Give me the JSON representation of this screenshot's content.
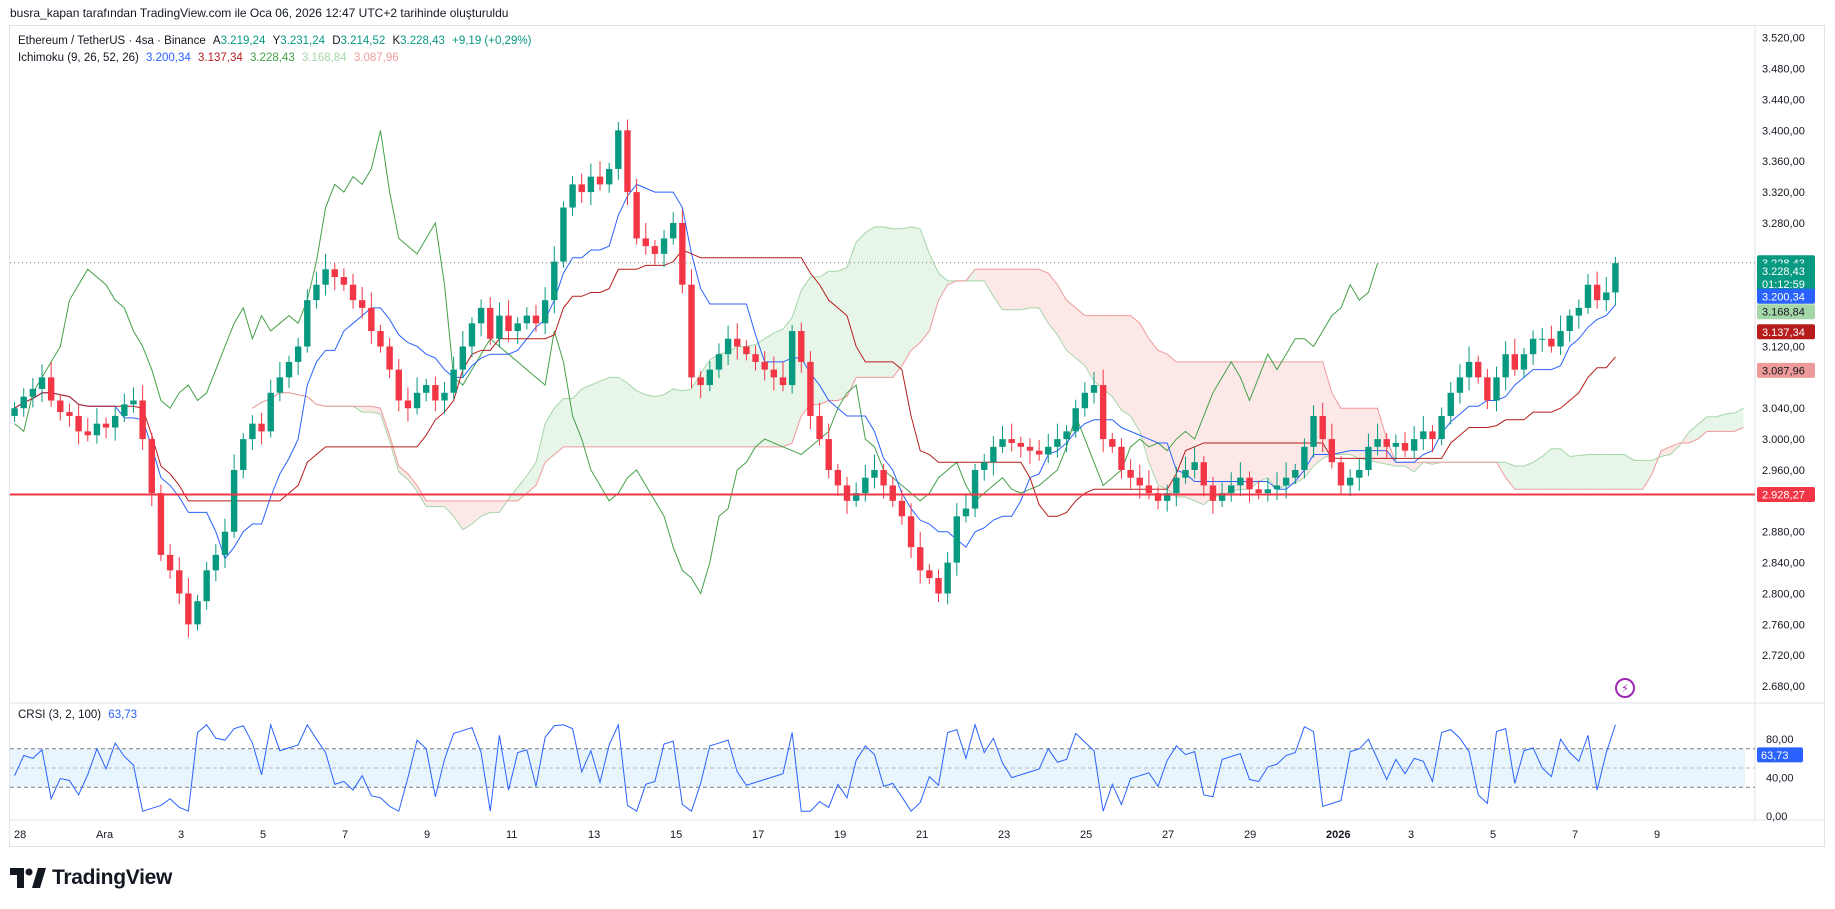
{
  "header": "busra_kapan tarafından TradingView.com ile Oca 06, 2026 12:47 UTC+2 tarihinde oluşturuldu",
  "legend": {
    "symbol": "Ethereum / TetherUS · 4sa · Binance",
    "open_label": "A",
    "open": "3.219,24",
    "high_label": "Y",
    "high": "3.231,24",
    "low_label": "D",
    "low": "3.214,52",
    "close_label": "K",
    "close": "3.228,43",
    "change": "+9,19 (+0,29%)",
    "ichimoku_name": "Ichimoku (9, 26, 52, 26)",
    "ichimoku_values": [
      "3.200,34",
      "3.137,34",
      "3.228,43",
      "3.168,84",
      "3.087,96"
    ],
    "crsi_name": "CRSI (3, 2, 100)",
    "crsi_value": "63,73"
  },
  "colors": {
    "up": "#089981",
    "down": "#f23645",
    "tenkan": "#2962ff",
    "kijun": "#b71c1c",
    "chikou": "#43a047",
    "spanA": "#a5d6a7",
    "spanB": "#ef9a9a",
    "cloud_bull": "#e8f5e9",
    "cloud_bear": "#fde8e8",
    "hline": "#f23645",
    "crsi": "#2962ff"
  },
  "chart_data": {
    "type": "candlestick",
    "symbol": "ETHUSDT",
    "timeframe": "4h",
    "price_axis": {
      "ticks": [
        "3.520,00",
        "3.480,00",
        "3.440,00",
        "3.400,00",
        "3.360,00",
        "3.320,00",
        "3.280,00",
        "3.120,00",
        "3.040,00",
        "3.000,00",
        "2.960,00",
        "2.880,00",
        "2.840,00",
        "2.800,00",
        "2.760,00",
        "2.720,00",
        "2.680,00"
      ],
      "tick_values": [
        3520,
        3480,
        3440,
        3400,
        3360,
        3320,
        3280,
        3120,
        3040,
        3000,
        2960,
        2880,
        2840,
        2800,
        2760,
        2720,
        2680
      ],
      "range": [
        2662,
        3530
      ]
    },
    "time_axis": {
      "labels": [
        "28",
        "Ara",
        "3",
        "5",
        "7",
        "9",
        "11",
        "13",
        "15",
        "17",
        "19",
        "21",
        "23",
        "25",
        "27",
        "29",
        "2026",
        "3",
        "5",
        "7",
        "9"
      ],
      "bold": [
        "2026"
      ]
    },
    "price_tags": [
      {
        "text": "3.228,43",
        "value": 3228.43,
        "color": "#089981"
      },
      {
        "text": "3.228,43",
        "value": 3218,
        "color": "#089981"
      },
      {
        "text": "01:12:59",
        "value": 3201,
        "color": "#089981"
      },
      {
        "text": "3.200,34",
        "value": 3185,
        "color": "#2962ff"
      },
      {
        "text": "3.168,84",
        "value": 3165,
        "color": "#a5d6a7",
        "dark": true
      },
      {
        "text": "3.137,34",
        "value": 3139,
        "color": "#b71c1c"
      },
      {
        "text": "3.087,96",
        "value": 3089,
        "color": "#ef9a9a",
        "dark": true
      },
      {
        "text": "2.928,27",
        "value": 2928.27,
        "color": "#f23645"
      }
    ],
    "horizontal_line": 2928.27,
    "last_price": 3228.43,
    "close_series": [
      3040,
      3055,
      3065,
      3080,
      3050,
      3035,
      3030,
      3010,
      3005,
      3020,
      3015,
      3030,
      3045,
      3050,
      3000,
      2930,
      2850,
      2830,
      2800,
      2760,
      2790,
      2830,
      2850,
      2880,
      2960,
      3000,
      3020,
      3010,
      3060,
      3080,
      3100,
      3120,
      3180,
      3200,
      3220,
      3210,
      3200,
      3180,
      3170,
      3140,
      3120,
      3090,
      3050,
      3040,
      3060,
      3070,
      3050,
      3060,
      3090,
      3120,
      3150,
      3170,
      3130,
      3160,
      3140,
      3150,
      3160,
      3150,
      3180,
      3230,
      3300,
      3330,
      3320,
      3340,
      3330,
      3350,
      3400,
      3320,
      3260,
      3250,
      3240,
      3260,
      3280,
      3200,
      3080,
      3070,
      3090,
      3110,
      3130,
      3120,
      3110,
      3100,
      3090,
      3080,
      3070,
      3140,
      3100,
      3030,
      3000,
      2960,
      2940,
      2920,
      2930,
      2950,
      2960,
      2940,
      2920,
      2900,
      2860,
      2830,
      2820,
      2800,
      2840,
      2900,
      2910,
      2960,
      2970,
      2990,
      3000,
      2995,
      2990,
      2985,
      2980,
      2990,
      3000,
      3010,
      3040,
      3060,
      3070,
      3000,
      2990,
      2960,
      2950,
      2940,
      2930,
      2920,
      2930,
      2950,
      2960,
      2970,
      2940,
      2920,
      2930,
      2940,
      2950,
      2935,
      2930,
      2935,
      2940,
      2950,
      2960,
      2990,
      3030,
      3000,
      2970,
      2940,
      2950,
      2960,
      2990,
      3000,
      2990,
      2995,
      2985,
      3000,
      3010,
      3000,
      3030,
      3060,
      3080,
      3100,
      3080,
      3050,
      3080,
      3110,
      3090,
      3110,
      3130,
      3130,
      3120,
      3140,
      3160,
      3170,
      3200,
      3180,
      3190,
      3228
    ],
    "crsi": {
      "levels": [
        80,
        40,
        0
      ],
      "level_labels": [
        "80,00",
        "40,00",
        "0,00"
      ],
      "band": [
        70,
        30
      ],
      "value": 63.73,
      "range": [
        0,
        100
      ]
    }
  }
}
